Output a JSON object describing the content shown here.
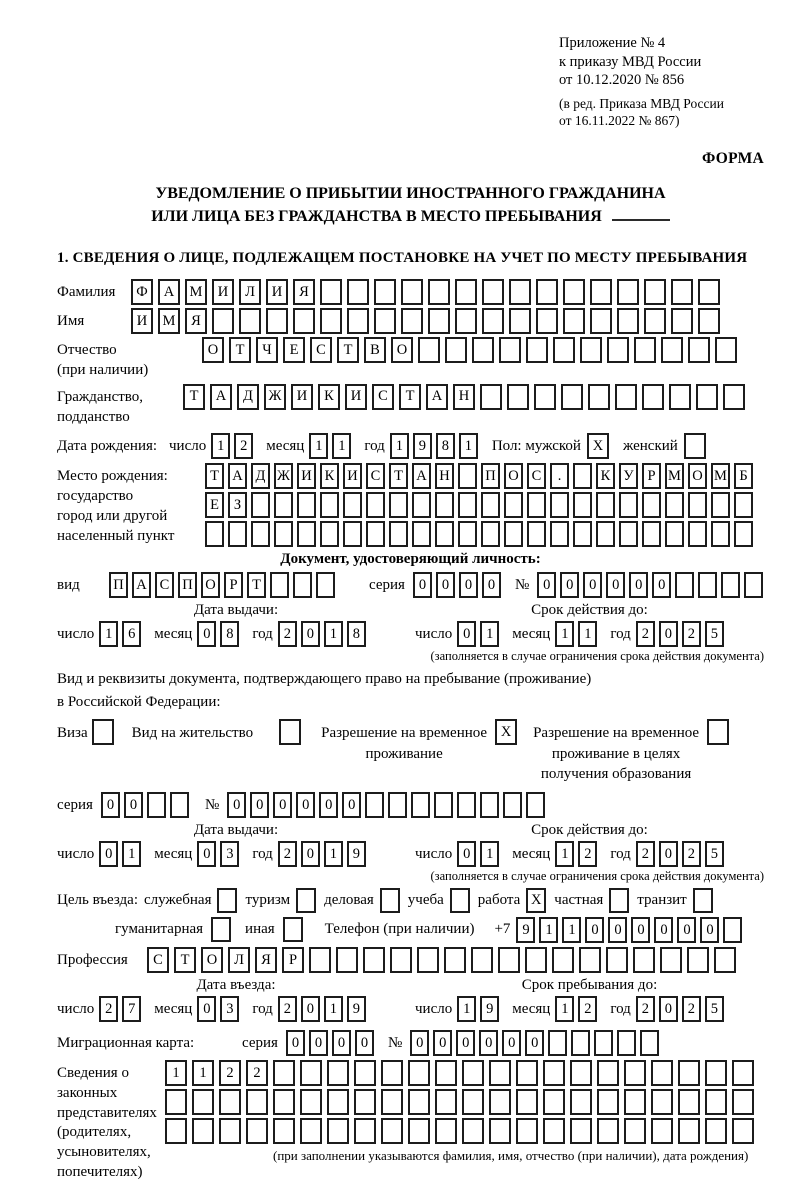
{
  "appendix": {
    "line1": "Приложение № 4",
    "line2": "к приказу МВД России",
    "line3": "от 10.12.2020 № 856",
    "line4": "(в ред. Приказа МВД России",
    "line5": "от 16.11.2022 № 867)",
    "forma": "ФОРМА"
  },
  "title": {
    "line1": "УВЕДОМЛЕНИЕ О ПРИБЫТИИ ИНОСТРАННОГО ГРАЖДАНИНА",
    "line2": "ИЛИ ЛИЦА БЕЗ ГРАЖДАНСТВА В МЕСТО ПРЕБЫВАНИЯ"
  },
  "section1": {
    "heading": "1. СВЕДЕНИЯ О ЛИЦЕ, ПОДЛЕЖАЩЕМ ПОСТАНОВКЕ НА УЧЕТ ПО МЕСТУ ПРЕБЫВАНИЯ"
  },
  "date_labels": {
    "day": "число",
    "month": "месяц",
    "year": "год"
  },
  "surname": {
    "label": "Фамилия",
    "cells": {
      "len": 22,
      "value": "ФАМИЛИЯ"
    }
  },
  "first_name": {
    "label": "Имя",
    "cells": {
      "len": 22,
      "value": "ИМЯ"
    }
  },
  "patronymic": {
    "label1": "Отчество",
    "label2": "(при наличии)",
    "cells": {
      "len": 20,
      "value": "ОТЧЕСТВО"
    }
  },
  "citizenship": {
    "label1": "Гражданство,",
    "label2": "подданство",
    "cells": {
      "len": 21,
      "value": "ТАДЖИКИСТАН"
    }
  },
  "birth_date": {
    "label": "Дата рождения:",
    "day": {
      "len": 2,
      "value": "12"
    },
    "month": {
      "len": 2,
      "value": "11"
    },
    "year": {
      "len": 4,
      "value": "1981"
    },
    "sex_label": "Пол: мужской",
    "male_mark": "X",
    "female_label": "женский",
    "female_mark": ""
  },
  "birth_place": {
    "label1": "Место рождения:",
    "label2": "государство",
    "label3": "город или другой",
    "label4": "населенный пункт",
    "row1": {
      "len": 24,
      "value": "ТАДЖИКИСТАН ПОС. КУРМОМБ"
    },
    "row2": {
      "len": 24,
      "value": "ЕЗ"
    },
    "row3": {
      "len": 24,
      "value": ""
    }
  },
  "identity_doc": {
    "heading": "Документ, удостоверяющий личность:",
    "type_label": "вид",
    "type": {
      "len": 10,
      "value": "ПАСПОРТ"
    },
    "series_label": "серия",
    "series": {
      "len": 4,
      "value": "0000"
    },
    "number_label": "№",
    "number": {
      "len": 10,
      "value": "000000"
    },
    "issue_heading": "Дата выдачи:",
    "issue": {
      "day": {
        "len": 2,
        "value": "16"
      },
      "month": {
        "len": 2,
        "value": "08"
      },
      "year": {
        "len": 4,
        "value": "2018"
      }
    },
    "valid_heading": "Срок действия до:",
    "valid": {
      "day": {
        "len": 2,
        "value": "01"
      },
      "month": {
        "len": 2,
        "value": "11"
      },
      "year": {
        "len": 4,
        "value": "2025"
      }
    },
    "note": "(заполняется в случае ограничения срока действия документа)"
  },
  "residence_doc": {
    "intro1": "Вид и реквизиты документа, подтверждающего право на пребывание (проживание)",
    "intro2": "в Российской Федерации:",
    "visa_label": "Виза",
    "visa_mark": "",
    "permit_label": "Вид на жительство",
    "permit_mark": "",
    "temp_label1": "Разрешение на временное",
    "temp_label2": "проживание",
    "temp_mark": "X",
    "edu_label1": "Разрешение на временное",
    "edu_label2": "проживание в целях",
    "edu_label3": "получения образования",
    "edu_mark": "",
    "series_label": "серия",
    "series": {
      "len": 4,
      "value": "00"
    },
    "number_label": "№",
    "number": {
      "len": 14,
      "value": "000000"
    },
    "issue_heading": "Дата выдачи:",
    "issue": {
      "day": {
        "len": 2,
        "value": "01"
      },
      "month": {
        "len": 2,
        "value": "03"
      },
      "year": {
        "len": 4,
        "value": "2019"
      }
    },
    "valid_heading": "Срок действия до:",
    "valid": {
      "day": {
        "len": 2,
        "value": "01"
      },
      "month": {
        "len": 2,
        "value": "12"
      },
      "year": {
        "len": 4,
        "value": "2025"
      }
    },
    "note": "(заполняется в случае ограничения срока действия документа)"
  },
  "visit_purpose": {
    "label": "Цель въезда:",
    "opt1_label": "служебная",
    "opt1_mark": "",
    "opt2_label": "туризм",
    "opt2_mark": "",
    "opt3_label": "деловая",
    "opt3_mark": "",
    "opt4_label": "учеба",
    "opt4_mark": "",
    "opt5_label": "работа",
    "opt5_mark": "X",
    "opt6_label": "частная",
    "opt6_mark": "",
    "opt7_label": "транзит",
    "opt7_mark": "",
    "opt8_label": "гуманитарная",
    "opt8_mark": "",
    "opt9_label": "иная",
    "opt9_mark": "",
    "phone_label": "Телефон (при наличии)",
    "phone_prefix": "+7",
    "phone": {
      "len": 10,
      "value": "911000000"
    }
  },
  "profession": {
    "label": "Профессия",
    "cells": {
      "len": 22,
      "value": "СТОЛЯР"
    }
  },
  "entry": {
    "entry_heading": "Дата въезда:",
    "entry_date": {
      "day": {
        "len": 2,
        "value": "27"
      },
      "month": {
        "len": 2,
        "value": "03"
      },
      "year": {
        "len": 4,
        "value": "2019"
      }
    },
    "stay_heading": "Срок пребывания до:",
    "stay_date": {
      "day": {
        "len": 2,
        "value": "19"
      },
      "month": {
        "len": 2,
        "value": "12"
      },
      "year": {
        "len": 4,
        "value": "2025"
      }
    }
  },
  "migration_card": {
    "label": "Миграционная карта:",
    "series_label": "серия",
    "series": {
      "len": 4,
      "value": "0000"
    },
    "number_label": "№",
    "number": {
      "len": 11,
      "value": "000000"
    }
  },
  "guardians": {
    "label1": "Сведения о",
    "label2": "законных",
    "label3": "представителях",
    "label4": "(родителях,",
    "label5": "усыновителях,",
    "label6": "попечителях)",
    "row1": {
      "len": 22,
      "value": "1122"
    },
    "row2": {
      "len": 22,
      "value": ""
    },
    "row3": {
      "len": 22,
      "value": ""
    },
    "note": "(при заполнении указываются фамилия, имя, отчество (при наличии), дата рождения)"
  }
}
